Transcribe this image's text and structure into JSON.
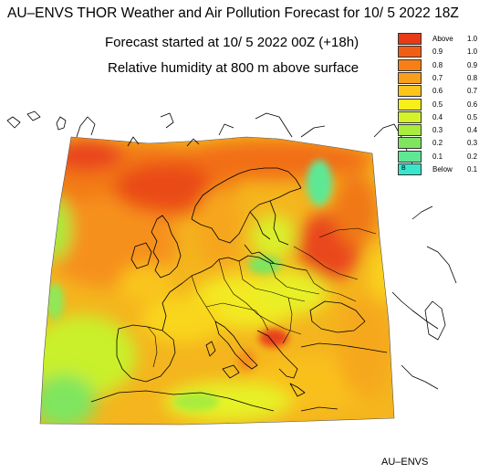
{
  "header": {
    "title": "AU–ENVS THOR Weather and Air Pollution Forecast for 10/ 5 2022  18Z",
    "forecast_started": "Forecast started at 10/ 5 2022  00Z (+18h)",
    "variable": "Relative humidity at 800 m above surface"
  },
  "legend": {
    "items": [
      {
        "a": "Above",
        "b": "1.0",
        "color": "#e83a17"
      },
      {
        "a": "0.9",
        "b": "1.0",
        "color": "#f25d14"
      },
      {
        "a": "0.8",
        "b": "0.9",
        "color": "#f77f15"
      },
      {
        "a": "0.7",
        "b": "0.8",
        "color": "#f9a01a"
      },
      {
        "a": "0.6",
        "b": "0.7",
        "color": "#fcc51c"
      },
      {
        "a": "0.5",
        "b": "0.6",
        "color": "#f7ee1a"
      },
      {
        "a": "0.4",
        "b": "0.5",
        "color": "#d4f22a"
      },
      {
        "a": "0.3",
        "b": "0.4",
        "color": "#a8ec3c"
      },
      {
        "a": "0.2",
        "b": "0.3",
        "color": "#7fe55e"
      },
      {
        "a": "0.1",
        "b": "0.2",
        "color": "#5ee894"
      },
      {
        "a": "Below",
        "b": "0.1",
        "color": "#38e6cc",
        "marker": "B"
      }
    ]
  },
  "footer": {
    "credit": "AU–ENVS"
  }
}
